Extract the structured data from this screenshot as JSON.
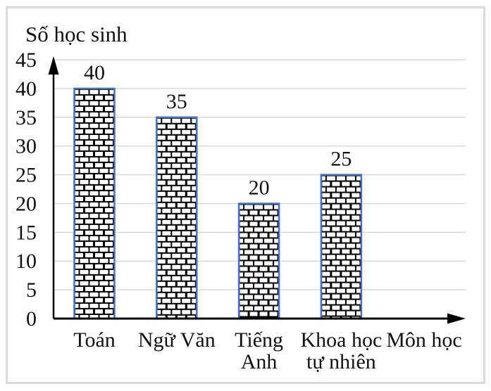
{
  "figure": {
    "background": "#FFFFFF"
  },
  "chart_data": {
    "type": "bar",
    "title": "Số học sinh",
    "ylabel": "Số học sinh",
    "xlabel": "Môn học",
    "categories": [
      "Toán",
      "Ngữ Văn",
      "Tiếng Anh",
      "Khoa học tự nhiên"
    ],
    "category_label_lines": [
      [
        "Toán"
      ],
      [
        "Ngữ Văn"
      ],
      [
        "Tiếng",
        "Anh"
      ],
      [
        "Khoa học",
        "tự nhiên"
      ]
    ],
    "values": [
      40,
      35,
      20,
      25
    ],
    "data_labels": [
      "40",
      "35",
      "20",
      "25"
    ],
    "ylim": [
      0,
      45
    ],
    "ytick_step": 5,
    "yticks": [
      0,
      5,
      10,
      15,
      20,
      25,
      30,
      35,
      40,
      45
    ],
    "grid": true,
    "legend": false,
    "bar_style": {
      "fill_pattern": "brick"
    },
    "colors": {
      "bar_border": "#4472C4",
      "brick_line": "#000000",
      "brick_bg": "#FFFFFF",
      "gridline": "#D9D9D9",
      "axis": "#000000",
      "text": "#111111",
      "box_border": "#DBDBDB"
    }
  }
}
